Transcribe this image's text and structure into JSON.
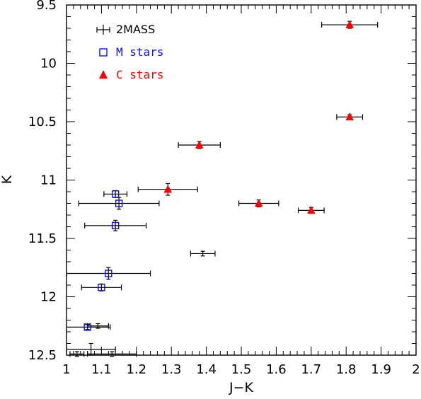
{
  "chart_data": {
    "type": "scatter",
    "xlabel": "J−K",
    "ylabel": "K",
    "xlim": [
      1,
      2
    ],
    "ylim": [
      12.5,
      9.5
    ],
    "y_inverted": true,
    "x_ticks": [
      "1",
      "1.1",
      "1.2",
      "1.3",
      "1.4",
      "1.5",
      "1.6",
      "1.7",
      "1.8",
      "1.9",
      "2"
    ],
    "y_ticks": [
      "9.5",
      "10",
      "10.5",
      "11",
      "11.5",
      "12",
      "12.5"
    ],
    "legend": {
      "placement": "top-left",
      "entries": [
        "2MASS",
        "M stars",
        "C stars"
      ]
    },
    "series": [
      {
        "name": "2MASS",
        "marker": "errorbar",
        "color": "#000000",
        "points": [
          {
            "x": 1.81,
            "y": 9.67,
            "xerr": 0.08,
            "yerr": 0.03
          },
          {
            "x": 1.81,
            "y": 10.46,
            "xerr": 0.037,
            "yerr": 0.02
          },
          {
            "x": 1.38,
            "y": 10.7,
            "xerr": 0.06,
            "yerr": 0.03
          },
          {
            "x": 1.29,
            "y": 11.08,
            "xerr": 0.085,
            "yerr": 0.05
          },
          {
            "x": 1.55,
            "y": 11.2,
            "xerr": 0.057,
            "yerr": 0.03
          },
          {
            "x": 1.7,
            "y": 11.26,
            "xerr": 0.037,
            "yerr": 0.025
          },
          {
            "x": 1.14,
            "y": 11.12,
            "xerr": 0.033,
            "yerr": 0.03
          },
          {
            "x": 1.15,
            "y": 11.2,
            "xerr": 0.115,
            "yerr": 0.05
          },
          {
            "x": 1.14,
            "y": 11.39,
            "xerr": 0.088,
            "yerr": 0.045
          },
          {
            "x": 1.39,
            "y": 11.63,
            "xerr": 0.035,
            "yerr": 0.02
          },
          {
            "x": 1.12,
            "y": 11.8,
            "xerr": 0.12,
            "yerr": 0.05
          },
          {
            "x": 1.1,
            "y": 11.92,
            "xerr": 0.057,
            "yerr": 0.03
          },
          {
            "x": 1.06,
            "y": 12.26,
            "xerr": 0.065,
            "yerr": 0.02
          },
          {
            "x": 1.09,
            "y": 12.25,
            "xerr": 0.03,
            "yerr": 0.02
          },
          {
            "x": 1.03,
            "y": 12.49,
            "xerr": 0.02,
            "yerr": 0.02
          },
          {
            "x": 1.07,
            "y": 12.45,
            "xerr": 0.07,
            "yerr": 0.05
          },
          {
            "x": 1.13,
            "y": 12.49,
            "xerr": 0.07,
            "yerr": 0.02
          }
        ]
      },
      {
        "name": "M stars",
        "marker": "open-square",
        "color": "#1010d8",
        "points": [
          {
            "x": 1.14,
            "y": 11.12
          },
          {
            "x": 1.15,
            "y": 11.2
          },
          {
            "x": 1.14,
            "y": 11.39
          },
          {
            "x": 1.12,
            "y": 11.8
          },
          {
            "x": 1.1,
            "y": 11.92
          },
          {
            "x": 1.06,
            "y": 12.26
          }
        ]
      },
      {
        "name": "C stars",
        "marker": "filled-triangle",
        "color": "#ff0000",
        "points": [
          {
            "x": 1.81,
            "y": 9.67
          },
          {
            "x": 1.81,
            "y": 10.46
          },
          {
            "x": 1.38,
            "y": 10.7
          },
          {
            "x": 1.29,
            "y": 11.08
          },
          {
            "x": 1.55,
            "y": 11.2
          },
          {
            "x": 1.7,
            "y": 11.26
          }
        ]
      }
    ]
  }
}
